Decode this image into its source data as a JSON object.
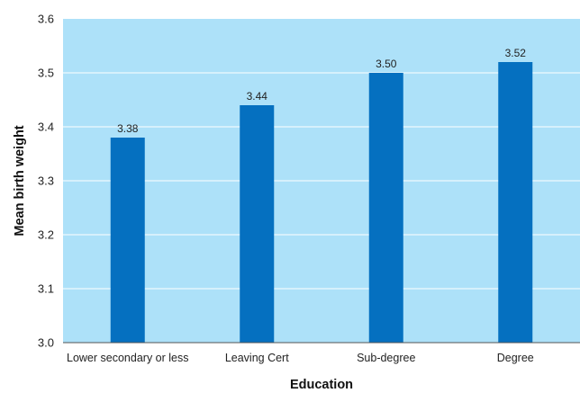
{
  "chart_data": {
    "type": "bar",
    "title": "",
    "xlabel": "Education",
    "ylabel": "Mean birth weight",
    "categories": [
      "Lower secondary or less",
      "Leaving Cert",
      "Sub-degree",
      "Degree"
    ],
    "values": [
      3.38,
      3.44,
      3.5,
      3.52
    ],
    "data_labels": [
      "3.38",
      "3.44",
      "3.50",
      "3.52"
    ],
    "ylim": [
      3.0,
      3.6
    ],
    "yticks": [
      "3.0",
      "3.1",
      "3.2",
      "3.3",
      "3.4",
      "3.5",
      "3.6"
    ],
    "grid": "horizontal",
    "colors": {
      "plot_background": "#ade1f9",
      "bar": "#0570c0",
      "gridline": "#ffffff"
    }
  }
}
